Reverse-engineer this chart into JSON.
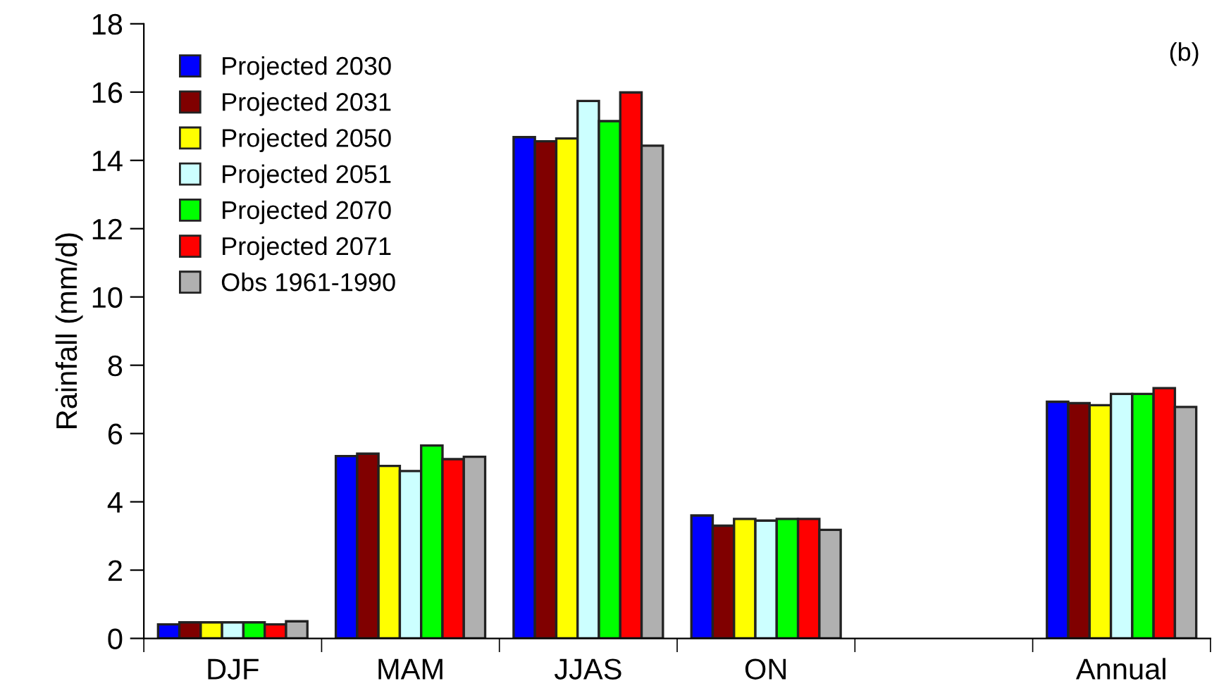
{
  "chart_data": {
    "type": "bar",
    "ylabel": "Rainfall (mm/d)",
    "categories": [
      "DJF",
      "MAM",
      "JJAS",
      "ON",
      null,
      "Annual"
    ],
    "series": [
      {
        "name": "Projected 2030",
        "color": "#0000ff",
        "values": [
          0.41,
          5.34,
          14.68,
          3.6,
          null,
          6.93
        ]
      },
      {
        "name": "Projected 2031",
        "color": "#800000",
        "values": [
          0.47,
          5.41,
          14.56,
          3.3,
          null,
          6.89
        ]
      },
      {
        "name": "Projected 2050",
        "color": "#ffff00",
        "values": [
          0.47,
          5.05,
          14.64,
          3.5,
          null,
          6.83
        ]
      },
      {
        "name": "Projected 2051",
        "color": "#ccffff",
        "values": [
          0.47,
          4.9,
          15.74,
          3.45,
          null,
          7.16
        ]
      },
      {
        "name": "Projected 2070",
        "color": "#00ff00",
        "values": [
          0.47,
          5.65,
          15.15,
          3.5,
          null,
          7.16
        ]
      },
      {
        "name": "Projected 2071",
        "color": "#ff0000",
        "values": [
          0.41,
          5.25,
          15.99,
          3.5,
          null,
          7.33
        ]
      },
      {
        "name": "Obs 1961-1990",
        "color": "#b0b0b0",
        "values": [
          0.5,
          5.32,
          14.43,
          3.18,
          null,
          6.78
        ]
      }
    ],
    "ylim": [
      0,
      18
    ],
    "yticks": [
      0,
      2,
      4,
      6,
      8,
      10,
      12,
      14,
      16,
      18
    ],
    "annotations": [
      "(b)"
    ],
    "legend": "top left",
    "grid": false
  }
}
